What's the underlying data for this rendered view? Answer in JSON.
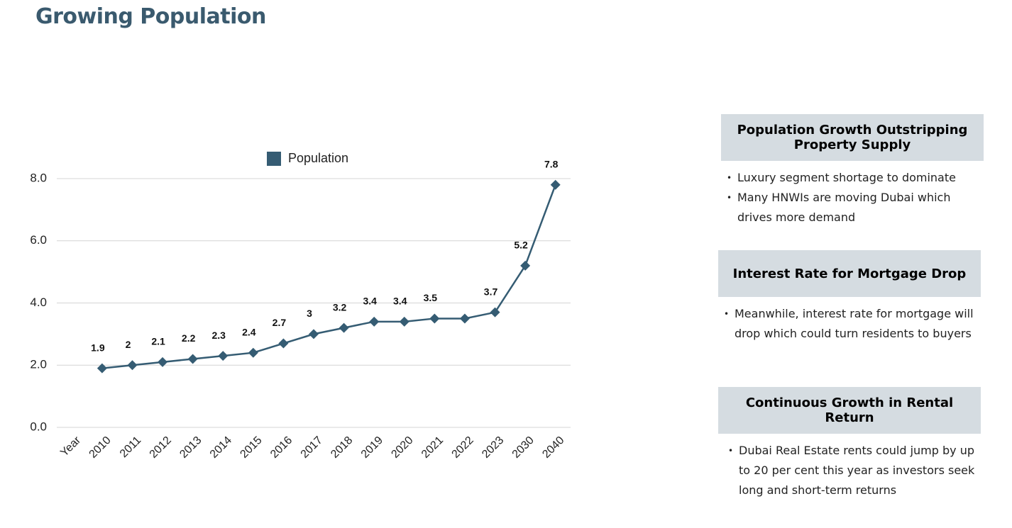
{
  "page_title": "Growing Population",
  "chart_data": {
    "type": "line",
    "categories": [
      "Year",
      "2010",
      "2011",
      "2012",
      "2013",
      "2014",
      "2015",
      "2016",
      "2017",
      "2018",
      "2019",
      "2020",
      "2021",
      "2022",
      "2023",
      "2030",
      "2040"
    ],
    "series": [
      {
        "name": "Population",
        "color": "#355c73",
        "values": [
          null,
          1.9,
          2,
          2.1,
          2.2,
          2.3,
          2.4,
          2.7,
          3,
          3.2,
          3.4,
          3.4,
          3.5,
          3.5,
          3.7,
          5.2,
          7.8
        ],
        "value_labels": [
          null,
          "1.9",
          "2",
          "2.1",
          "2.2",
          "2.3",
          "2.4",
          "2.7",
          "3",
          "3.2",
          "3.4",
          "3.4",
          "3.5",
          null,
          "3.7",
          "5.2",
          "7.8"
        ]
      }
    ],
    "ylim": [
      0,
      8
    ],
    "yticks": [
      {
        "value": 0,
        "label": "0.0"
      },
      {
        "value": 2,
        "label": "2.0"
      },
      {
        "value": 4,
        "label": "4.0"
      },
      {
        "value": 6,
        "label": "6.0"
      },
      {
        "value": 8,
        "label": "8.0"
      }
    ],
    "grid": true,
    "legend": "top"
  },
  "panels": [
    {
      "title": "Population Growth Outstripping Property Supply",
      "bullets": [
        "Luxury segment shortage to dominate",
        "Many HNWIs are moving Dubai which drives more demand"
      ]
    },
    {
      "title": "Interest Rate for Mortgage Drop",
      "bullets": [
        "Meanwhile, interest rate for mortgage will drop which could turn residents to buyers"
      ]
    },
    {
      "title": "Continuous Growth in Rental Return",
      "bullets": [
        "Dubai Real Estate rents could jump by up to 20 per cent this year as investors seek long and short-term returns"
      ]
    }
  ]
}
